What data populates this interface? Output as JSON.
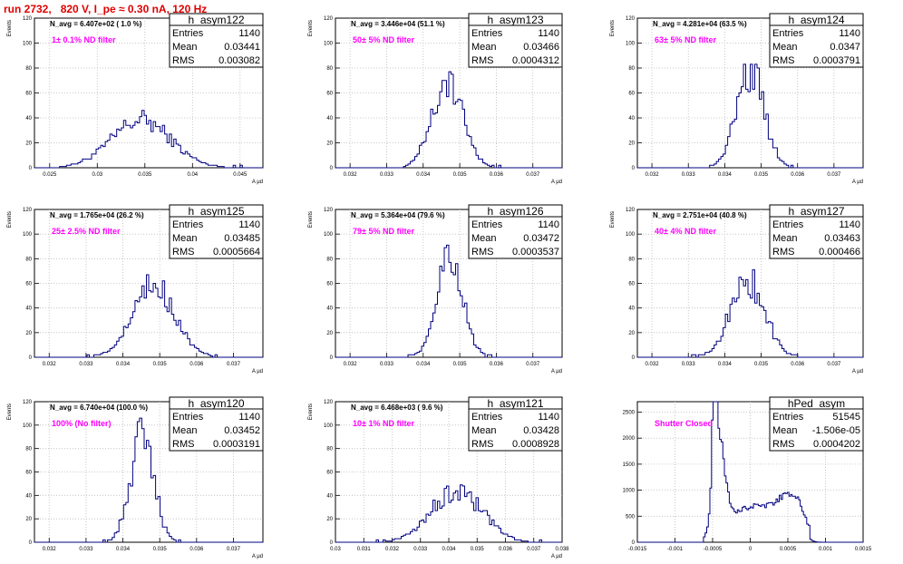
{
  "page": {
    "title": "run 2732,   820 V, I_pe ≈ 0.30 nA, 120 Hz"
  },
  "colors": {
    "line": "#000080",
    "grid": "#bbbbbb",
    "filter_label": "#ff00ff",
    "title": "#e00000"
  },
  "chart_data": [
    {
      "type": "histogram",
      "name": "h_asym122",
      "navg": "N_avg = 6.407e+02 ( 1.0 %)",
      "label": "1± 0.1% ND filter",
      "stats": [
        [
          "Entries",
          "1140"
        ],
        [
          "Mean",
          "0.03441"
        ],
        [
          "RMS",
          "0.003082"
        ]
      ],
      "xmin": 0.0234,
      "xmax": 0.0474,
      "ymin": 0,
      "ymax": 120,
      "xticks": [
        [
          "0.025",
          0.025
        ],
        [
          "0.03",
          0.03
        ],
        [
          "0.035",
          0.035
        ],
        [
          "0.04",
          0.04
        ],
        [
          "0.045",
          0.045
        ]
      ],
      "yticks": [
        0,
        20,
        40,
        60,
        80,
        100,
        120
      ],
      "ylabel": "Events",
      "xlabel": "A μd",
      "shape": {
        "kind": "gauss",
        "mu": 0.0346,
        "sigma": 0.0031,
        "peak": 38
      }
    },
    {
      "type": "histogram",
      "name": "h_asym123",
      "navg": "N_avg = 3.446e+04 (51.1 %)",
      "label": "50± 5% ND filter",
      "stats": [
        [
          "Entries",
          "1140"
        ],
        [
          "Mean",
          "0.03466"
        ],
        [
          "RMS",
          "0.0004312"
        ]
      ],
      "xmin": 0.0316,
      "xmax": 0.0378,
      "ymin": 0,
      "ymax": 120,
      "xticks": [
        [
          "0.032",
          0.032
        ],
        [
          "0.033",
          0.033
        ],
        [
          "0.034",
          0.034
        ],
        [
          "0.035",
          0.035
        ],
        [
          "0.036",
          0.036
        ],
        [
          "0.037",
          0.037
        ]
      ],
      "yticks": [
        0,
        20,
        40,
        60,
        80,
        100,
        120
      ],
      "ylabel": "Events",
      "xlabel": "A μd",
      "shape": {
        "kind": "gauss",
        "mu": 0.03466,
        "sigma": 0.00043,
        "peak": 68
      }
    },
    {
      "type": "histogram",
      "name": "h_asym124",
      "navg": "N_avg = 4.281e+04 (63.5 %)",
      "label": "63± 5% ND filter",
      "stats": [
        [
          "Entries",
          "1140"
        ],
        [
          "Mean",
          "0.0347"
        ],
        [
          "RMS",
          "0.0003791"
        ]
      ],
      "xmin": 0.0316,
      "xmax": 0.0378,
      "ymin": 0,
      "ymax": 120,
      "xticks": [
        [
          "0.032",
          0.032
        ],
        [
          "0.033",
          0.033
        ],
        [
          "0.034",
          0.034
        ],
        [
          "0.035",
          0.035
        ],
        [
          "0.036",
          0.036
        ],
        [
          "0.037",
          0.037
        ]
      ],
      "yticks": [
        0,
        20,
        40,
        60,
        80,
        100,
        120
      ],
      "ylabel": "Events",
      "xlabel": "A μd",
      "shape": {
        "kind": "gauss",
        "mu": 0.0347,
        "sigma": 0.00038,
        "peak": 78
      }
    },
    {
      "type": "histogram",
      "name": "h_asym125",
      "navg": "N_avg = 1.765e+04 (26.2 %)",
      "label": "25± 2.5% ND filter",
      "stats": [
        [
          "Entries",
          "1140"
        ],
        [
          "Mean",
          "0.03485"
        ],
        [
          "RMS",
          "0.0005664"
        ]
      ],
      "xmin": 0.0316,
      "xmax": 0.0378,
      "ymin": 0,
      "ymax": 120,
      "xticks": [
        [
          "0.032",
          0.032
        ],
        [
          "0.033",
          0.033
        ],
        [
          "0.034",
          0.034
        ],
        [
          "0.035",
          0.035
        ],
        [
          "0.036",
          0.036
        ],
        [
          "0.037",
          0.037
        ]
      ],
      "yticks": [
        0,
        20,
        40,
        60,
        80,
        100,
        120
      ],
      "ylabel": "Events",
      "xlabel": "A μd",
      "shape": {
        "kind": "gauss",
        "mu": 0.03485,
        "sigma": 0.00057,
        "peak": 58
      }
    },
    {
      "type": "histogram",
      "name": "h_asym126",
      "navg": "N_avg = 5.364e+04 (79.6 %)",
      "label": "79± 5% ND filter",
      "stats": [
        [
          "Entries",
          "1140"
        ],
        [
          "Mean",
          "0.03472"
        ],
        [
          "RMS",
          "0.0003537"
        ]
      ],
      "xmin": 0.0316,
      "xmax": 0.0378,
      "ymin": 0,
      "ymax": 120,
      "xticks": [
        [
          "0.032",
          0.032
        ],
        [
          "0.033",
          0.033
        ],
        [
          "0.034",
          0.034
        ],
        [
          "0.035",
          0.035
        ],
        [
          "0.036",
          0.036
        ],
        [
          "0.037",
          0.037
        ]
      ],
      "yticks": [
        0,
        20,
        40,
        60,
        80,
        100,
        120
      ],
      "ylabel": "Events",
      "xlabel": "A μd",
      "shape": {
        "kind": "gauss",
        "mu": 0.03472,
        "sigma": 0.00035,
        "peak": 85
      }
    },
    {
      "type": "histogram",
      "name": "h_asym127",
      "navg": "N_avg = 2.751e+04 (40.8 %)",
      "label": "40± 4% ND filter",
      "stats": [
        [
          "Entries",
          "1140"
        ],
        [
          "Mean",
          "0.03463"
        ],
        [
          "RMS",
          "0.000466"
        ]
      ],
      "xmin": 0.0316,
      "xmax": 0.0378,
      "ymin": 0,
      "ymax": 120,
      "xticks": [
        [
          "0.032",
          0.032
        ],
        [
          "0.033",
          0.033
        ],
        [
          "0.034",
          0.034
        ],
        [
          "0.035",
          0.035
        ],
        [
          "0.036",
          0.036
        ],
        [
          "0.037",
          0.037
        ]
      ],
      "yticks": [
        0,
        20,
        40,
        60,
        80,
        100,
        120
      ],
      "ylabel": "Events",
      "xlabel": "A μd",
      "shape": {
        "kind": "gauss",
        "mu": 0.03463,
        "sigma": 0.00047,
        "peak": 62
      }
    },
    {
      "type": "histogram",
      "name": "h_asym120",
      "navg": "N_avg = 6.740e+04 (100.0 %)",
      "label": "100% (No filter)",
      "stats": [
        [
          "Entries",
          "1140"
        ],
        [
          "Mean",
          "0.03452"
        ],
        [
          "RMS",
          "0.0003191"
        ]
      ],
      "xmin": 0.0316,
      "xmax": 0.0378,
      "ymin": 0,
      "ymax": 120,
      "xticks": [
        [
          "0.032",
          0.032
        ],
        [
          "0.033",
          0.033
        ],
        [
          "0.034",
          0.034
        ],
        [
          "0.035",
          0.035
        ],
        [
          "0.036",
          0.036
        ],
        [
          "0.037",
          0.037
        ]
      ],
      "yticks": [
        0,
        20,
        40,
        60,
        80,
        100,
        120
      ],
      "ylabel": "Events",
      "xlabel": "A μd",
      "shape": {
        "kind": "gauss",
        "mu": 0.03452,
        "sigma": 0.00032,
        "peak": 90
      }
    },
    {
      "type": "histogram",
      "name": "h_asym121",
      "navg": "N_avg = 6.468e+03 ( 9.6 %)",
      "label": "10± 1% ND filter",
      "stats": [
        [
          "Entries",
          "1140"
        ],
        [
          "Mean",
          "0.03428"
        ],
        [
          "RMS",
          "0.0008928"
        ]
      ],
      "xmin": 0.03,
      "xmax": 0.038,
      "ymin": 0,
      "ymax": 120,
      "xticks": [
        [
          "0.03",
          0.03
        ],
        [
          "0.031",
          0.031
        ],
        [
          "0.032",
          0.032
        ],
        [
          "0.033",
          0.033
        ],
        [
          "0.034",
          0.034
        ],
        [
          "0.035",
          0.035
        ],
        [
          "0.036",
          0.036
        ],
        [
          "0.037",
          0.037
        ],
        [
          "0.038",
          0.038
        ]
      ],
      "yticks": [
        0,
        20,
        40,
        60,
        80,
        100,
        120
      ],
      "ylabel": "Events",
      "xlabel": "A μd",
      "shape": {
        "kind": "gauss",
        "mu": 0.03428,
        "sigma": 0.00089,
        "peak": 44
      }
    },
    {
      "type": "histogram",
      "name": "hPed_asym",
      "navg": "",
      "label": "Shutter Closed",
      "stats": [
        [
          "Entries",
          "51545"
        ],
        [
          "Mean",
          "-1.506e-05"
        ],
        [
          "RMS",
          "0.0004202"
        ]
      ],
      "xmin": -0.0015,
      "xmax": 0.0015,
      "ymin": 0,
      "ymax": 2700,
      "xticks": [
        [
          "-0.0015",
          -0.0015
        ],
        [
          "-0.001",
          -0.001
        ],
        [
          "-0.0005",
          -0.0005
        ],
        [
          "0",
          0
        ],
        [
          "0.0005",
          0.0005
        ],
        [
          "0.001",
          0.001
        ],
        [
          "0.0015",
          0.0015
        ]
      ],
      "yticks": [
        [
          0,
          "0"
        ],
        [
          500,
          "500"
        ],
        [
          1000,
          "1000"
        ],
        [
          1500,
          "1500"
        ],
        [
          2000,
          "2000"
        ],
        [
          2500,
          "2500"
        ]
      ],
      "ylabel": "",
      "xlabel": "",
      "shape": {
        "kind": "ped"
      }
    }
  ]
}
